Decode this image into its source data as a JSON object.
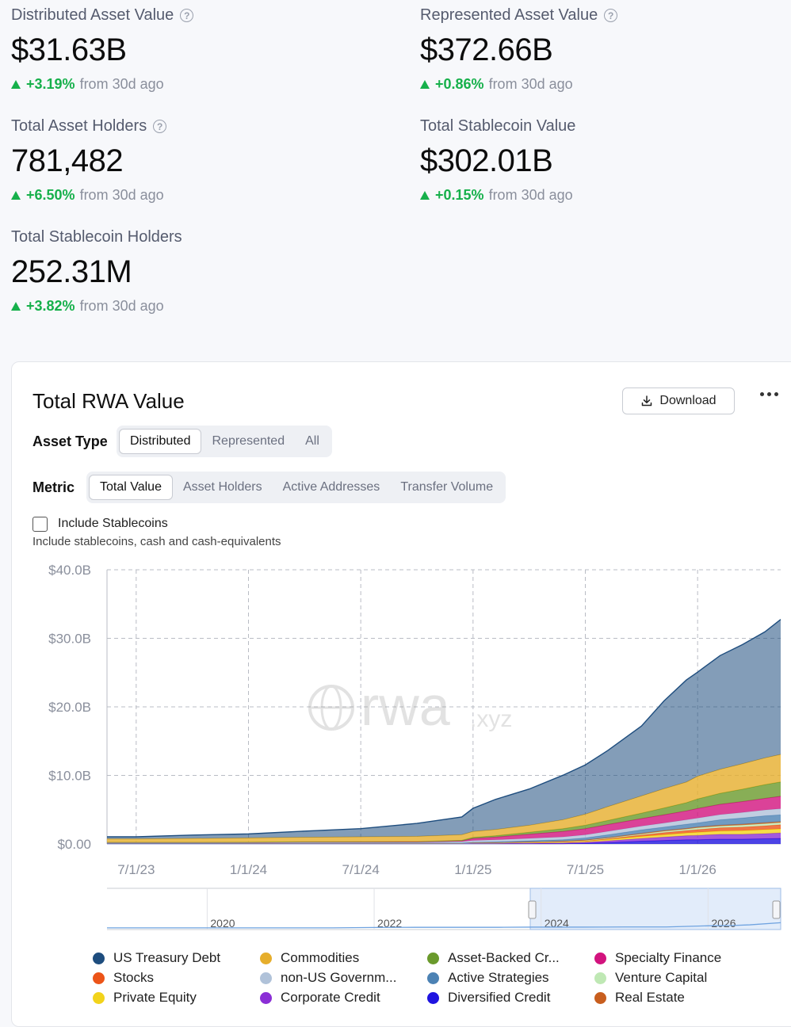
{
  "stats": [
    {
      "label": "Distributed Asset Value",
      "has_help": true,
      "value": "$31.63B",
      "change": "+3.19%",
      "since": "from 30d ago"
    },
    {
      "label": "Represented Asset Value",
      "has_help": true,
      "value": "$372.66B",
      "change": "+0.86%",
      "since": "from 30d ago"
    },
    {
      "label": "Total Asset Holders",
      "has_help": true,
      "value": "781,482",
      "change": "+6.50%",
      "since": "from 30d ago"
    },
    {
      "label": "Total Stablecoin Value",
      "has_help": false,
      "value": "$302.01B",
      "change": "+0.15%",
      "since": "from 30d ago"
    },
    {
      "label": "Total Stablecoin Holders",
      "has_help": false,
      "value": "252.31M",
      "change": "+3.82%",
      "since": "from 30d ago"
    }
  ],
  "help_icon": "?",
  "card": {
    "title": "Total RWA Value",
    "download_label": "Download",
    "more_icon": "more-dots-icon",
    "asset_type_label": "Asset Type",
    "asset_type_options": [
      "Distributed",
      "Represented",
      "All"
    ],
    "asset_type_selected": "Distributed",
    "metric_label": "Metric",
    "metric_options": [
      "Total Value",
      "Asset Holders",
      "Active Addresses",
      "Transfer Volume"
    ],
    "metric_selected": "Total Value",
    "include_stablecoins_label": "Include Stablecoins",
    "include_stablecoins_checked": false,
    "include_stablecoins_help": "Include stablecoins, cash and cash-equivalents"
  },
  "watermark": {
    "main": "rwa",
    "suffix": ".xyz"
  },
  "chart_data": {
    "type": "area",
    "stacked": true,
    "y_tick_labels": [
      "$0.00",
      "$10.0B",
      "$20.0B",
      "$30.0B",
      "$40.0B"
    ],
    "ylim": [
      0,
      40
    ],
    "x_tick_labels": [
      "7/1/23",
      "1/1/24",
      "7/1/24",
      "1/1/25",
      "7/1/25",
      "1/1/26"
    ],
    "x_ticks": [
      2023.5,
      2024.0,
      2024.5,
      2025.0,
      2025.5,
      2026.0
    ],
    "xlim": [
      2023.37,
      2026.37
    ],
    "grid": true,
    "x": [
      2023.37,
      2023.5,
      2023.75,
      2024.0,
      2024.25,
      2024.5,
      2024.75,
      2024.95,
      2025.0,
      2025.1,
      2025.25,
      2025.4,
      2025.5,
      2025.6,
      2025.75,
      2025.85,
      2025.95,
      2026.0,
      2026.1,
      2026.2,
      2026.3,
      2026.37
    ],
    "series": [
      {
        "name": "Diversified Credit",
        "color": "#1f14e0",
        "values": [
          0.05,
          0.05,
          0.05,
          0.05,
          0.05,
          0.05,
          0.05,
          0.05,
          0.05,
          0.05,
          0.05,
          0.05,
          0.1,
          0.2,
          0.4,
          0.5,
          0.6,
          0.6,
          0.7,
          0.7,
          0.75,
          0.8
        ]
      },
      {
        "name": "Corporate Credit",
        "color": "#8b2fd6",
        "values": [
          0.05,
          0.05,
          0.05,
          0.05,
          0.05,
          0.05,
          0.05,
          0.05,
          0.05,
          0.05,
          0.05,
          0.1,
          0.15,
          0.25,
          0.4,
          0.5,
          0.6,
          0.65,
          0.7,
          0.7,
          0.75,
          0.8
        ]
      },
      {
        "name": "Private Equity",
        "color": "#f2d31b",
        "values": [
          0,
          0,
          0,
          0,
          0,
          0,
          0,
          0,
          0.05,
          0.05,
          0.1,
          0.1,
          0.15,
          0.2,
          0.3,
          0.35,
          0.4,
          0.45,
          0.5,
          0.55,
          0.6,
          0.6
        ]
      },
      {
        "name": "Stocks",
        "color": "#ec5418",
        "values": [
          0,
          0,
          0,
          0,
          0,
          0,
          0,
          0,
          0,
          0,
          0,
          0.05,
          0.05,
          0.1,
          0.2,
          0.3,
          0.35,
          0.4,
          0.45,
          0.5,
          0.55,
          0.6
        ]
      },
      {
        "name": "Venture Capital",
        "color": "#bfe8b4",
        "values": [
          0,
          0,
          0,
          0,
          0,
          0,
          0,
          0,
          0,
          0,
          0.05,
          0.05,
          0.05,
          0.1,
          0.15,
          0.2,
          0.2,
          0.25,
          0.25,
          0.3,
          0.3,
          0.3
        ]
      },
      {
        "name": "Real Estate",
        "color": "#c85e1e",
        "values": [
          0.02,
          0.02,
          0.02,
          0.03,
          0.03,
          0.03,
          0.04,
          0.04,
          0.05,
          0.05,
          0.06,
          0.07,
          0.08,
          0.08,
          0.1,
          0.1,
          0.12,
          0.12,
          0.13,
          0.14,
          0.15,
          0.15
        ]
      },
      {
        "name": "Active Strategies",
        "color": "#4c82b4",
        "values": [
          0,
          0,
          0,
          0,
          0,
          0,
          0,
          0,
          0.05,
          0.1,
          0.15,
          0.2,
          0.3,
          0.4,
          0.5,
          0.5,
          0.6,
          0.6,
          0.8,
          0.9,
          1.0,
          1.0
        ]
      },
      {
        "name": "non-US Government Debt",
        "color": "#b0c2d9",
        "values": [
          0.1,
          0.1,
          0.1,
          0.1,
          0.15,
          0.15,
          0.15,
          0.2,
          0.25,
          0.3,
          0.35,
          0.4,
          0.45,
          0.5,
          0.55,
          0.6,
          0.65,
          0.7,
          0.75,
          0.8,
          0.85,
          0.9
        ]
      },
      {
        "name": "Specialty Finance",
        "color": "#d2137e",
        "values": [
          0,
          0,
          0,
          0,
          0,
          0,
          0,
          0.1,
          0.3,
          0.4,
          0.6,
          0.8,
          0.9,
          1.0,
          1.1,
          1.2,
          1.3,
          1.4,
          1.5,
          1.6,
          1.7,
          1.8
        ]
      },
      {
        "name": "Asset-Backed Credit",
        "color": "#6a9a2c",
        "values": [
          0.02,
          0.02,
          0.02,
          0.03,
          0.04,
          0.05,
          0.06,
          0.1,
          0.15,
          0.2,
          0.3,
          0.4,
          0.5,
          0.6,
          0.8,
          1.0,
          1.2,
          1.4,
          1.6,
          1.8,
          2.0,
          2.1
        ]
      },
      {
        "name": "Commodities",
        "color": "#e6ae2c",
        "values": [
          0.5,
          0.5,
          0.55,
          0.6,
          0.65,
          0.7,
          0.75,
          0.8,
          0.85,
          0.9,
          1.0,
          1.3,
          1.6,
          2.0,
          2.5,
          2.8,
          3.0,
          3.3,
          3.5,
          3.7,
          3.9,
          4.0
        ]
      },
      {
        "name": "US Treasury Debt",
        "color": "#1e4d7e",
        "values": [
          0.3,
          0.3,
          0.5,
          0.6,
          0.9,
          1.2,
          1.9,
          2.6,
          3.4,
          4.4,
          5.3,
          6.5,
          7.2,
          8.2,
          10.2,
          12.8,
          14.9,
          15.2,
          16.6,
          17.4,
          18.4,
          19.7
        ]
      }
    ],
    "legend": [
      {
        "name": "US Treasury Debt",
        "color": "#1e4d7e"
      },
      {
        "name": "Commodities",
        "color": "#e6ae2c"
      },
      {
        "name": "Asset-Backed Cr...",
        "color": "#6a9a2c"
      },
      {
        "name": "Specialty Finance",
        "color": "#d2137e"
      },
      {
        "name": "Stocks",
        "color": "#ec5418"
      },
      {
        "name": "non-US Governm...",
        "color": "#b0c2d9"
      },
      {
        "name": "Active Strategies",
        "color": "#4c82b4"
      },
      {
        "name": "Venture Capital",
        "color": "#bfe8b4"
      },
      {
        "name": "Private Equity",
        "color": "#f2d31b"
      },
      {
        "name": "Corporate Credit",
        "color": "#8b2fd6"
      },
      {
        "name": "Diversified Credit",
        "color": "#1f14e0"
      },
      {
        "name": "Real Estate",
        "color": "#c85e1e"
      }
    ],
    "legend_placement": "bottom",
    "navigator": {
      "tick_labels": [
        "2020",
        "2022",
        "2024",
        "2026"
      ],
      "ticks": [
        2019.5,
        2021.5,
        2023.5,
        2025.5
      ],
      "xlim": [
        2018.3,
        2026.37
      ],
      "selection": [
        2023.37,
        2026.37
      ],
      "x": [
        2018.3,
        2020.0,
        2021.0,
        2021.5,
        2022.0,
        2022.5,
        2023.0,
        2023.4,
        2023.5,
        2024.0,
        2024.5,
        2025.0,
        2025.5,
        2025.8,
        2026.0,
        2026.37
      ],
      "values": [
        0.05,
        0.05,
        0.05,
        0.3,
        0.4,
        0.4,
        0.4,
        0.5,
        0.5,
        0.5,
        0.6,
        0.6,
        1.3,
        1.5,
        1.9,
        3.2
      ]
    }
  }
}
